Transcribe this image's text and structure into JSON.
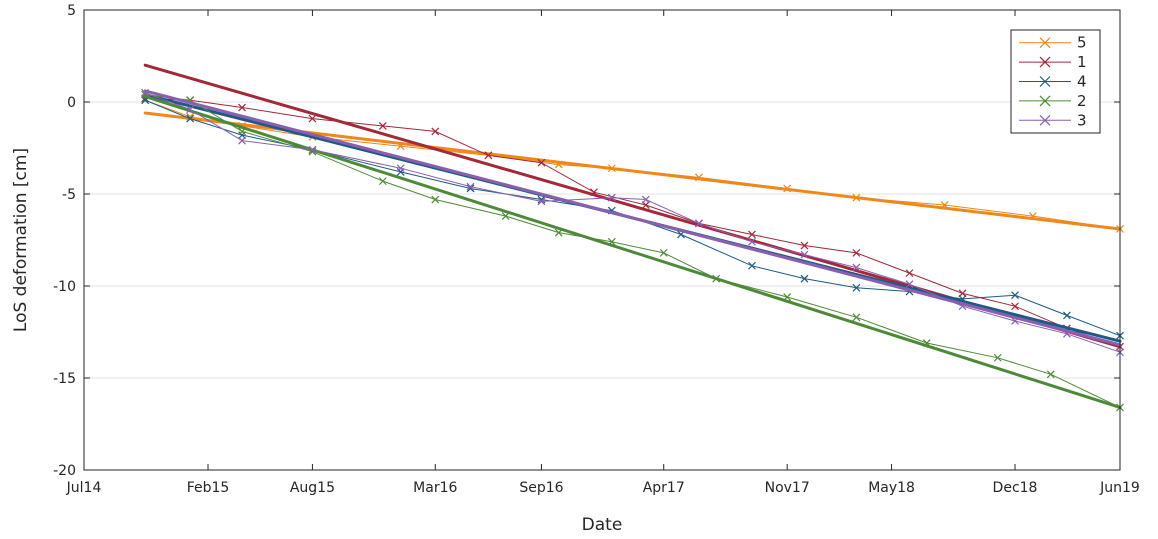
{
  "chart_data": {
    "type": "line",
    "title": "",
    "xlabel": "Date",
    "ylabel": "LoS deformation [cm]",
    "x_axis": "date",
    "xlim": [
      "2014-07-01",
      "2019-06-01"
    ],
    "ylim": [
      -20,
      5
    ],
    "x_ticks": [
      {
        "date": "2014-07-01",
        "label": "Jul14"
      },
      {
        "date": "2015-02-01",
        "label": "Feb15"
      },
      {
        "date": "2015-08-01",
        "label": "Aug15"
      },
      {
        "date": "2016-03-01",
        "label": "Mar16"
      },
      {
        "date": "2016-09-01",
        "label": "Sep16"
      },
      {
        "date": "2017-04-01",
        "label": "Apr17"
      },
      {
        "date": "2017-11-01",
        "label": "Nov17"
      },
      {
        "date": "2018-05-01",
        "label": "May18"
      },
      {
        "date": "2018-12-01",
        "label": "Dec18"
      },
      {
        "date": "2019-06-01",
        "label": "Jun19"
      }
    ],
    "y_ticks": [
      {
        "value": 5,
        "label": "5"
      },
      {
        "value": 0,
        "label": "0"
      },
      {
        "value": -5,
        "label": "-5"
      },
      {
        "value": -10,
        "label": "-10"
      },
      {
        "value": -15,
        "label": "-15"
      },
      {
        "value": -20,
        "label": "-20"
      }
    ],
    "grid": "horizontal",
    "legend_position": "top-right",
    "series": [
      {
        "name": "5",
        "color": "#f0871a",
        "x": [
          "2014-10-15",
          "2015-01-01",
          "2015-04-01",
          "2015-08-01",
          "2016-01-01",
          "2016-06-01",
          "2016-10-01",
          "2017-01-01",
          "2017-06-01",
          "2017-11-01",
          "2018-03-01",
          "2018-08-01",
          "2019-01-01",
          "2019-06-01"
        ],
        "y": [
          0.1,
          -0.8,
          -1.3,
          -1.9,
          -2.4,
          -2.9,
          -3.4,
          -3.6,
          -4.1,
          -4.7,
          -5.2,
          -5.6,
          -6.2,
          -6.9
        ],
        "trend": [
          [
            "2014-10-15",
            -0.6
          ],
          [
            "2019-06-01",
            -6.9
          ]
        ]
      },
      {
        "name": "1",
        "color": "#a2283a",
        "x": [
          "2014-10-15",
          "2015-01-01",
          "2015-04-01",
          "2015-08-01",
          "2015-12-01",
          "2016-03-01",
          "2016-06-01",
          "2016-09-01",
          "2016-12-01",
          "2017-03-01",
          "2017-06-01",
          "2017-09-01",
          "2017-12-01",
          "2018-03-01",
          "2018-06-01",
          "2018-09-01",
          "2018-12-01",
          "2019-03-01",
          "2019-06-01"
        ],
        "y": [
          0.2,
          0.1,
          -0.3,
          -0.9,
          -1.3,
          -1.6,
          -2.9,
          -3.3,
          -4.9,
          -5.6,
          -6.6,
          -7.2,
          -7.8,
          -8.2,
          -9.3,
          -10.4,
          -11.1,
          -12.3,
          -13.3
        ],
        "trend": [
          [
            "2014-10-15",
            2.0
          ],
          [
            "2019-06-01",
            -13.3
          ]
        ]
      },
      {
        "name": "4",
        "color": "#1d5a86",
        "x": [
          "2014-10-15",
          "2015-01-01",
          "2015-04-01",
          "2015-08-01",
          "2016-01-01",
          "2016-05-01",
          "2016-09-01",
          "2017-01-01",
          "2017-05-01",
          "2017-09-01",
          "2017-12-01",
          "2018-03-01",
          "2018-06-01",
          "2018-09-01",
          "2018-12-01",
          "2019-03-01",
          "2019-06-01"
        ],
        "y": [
          0.1,
          -0.9,
          -1.8,
          -2.6,
          -3.8,
          -4.7,
          -5.3,
          -5.9,
          -7.2,
          -8.9,
          -9.6,
          -10.1,
          -10.3,
          -10.7,
          -10.5,
          -11.6,
          -12.7
        ],
        "trend": [
          [
            "2014-10-15",
            0.4
          ],
          [
            "2019-06-01",
            -13.0
          ]
        ]
      },
      {
        "name": "2",
        "color": "#4d8a37",
        "x": [
          "2014-10-15",
          "2015-01-01",
          "2015-04-01",
          "2015-08-01",
          "2015-12-01",
          "2016-03-01",
          "2016-07-01",
          "2016-10-01",
          "2017-01-01",
          "2017-04-01",
          "2017-07-01",
          "2017-11-01",
          "2018-03-01",
          "2018-07-01",
          "2018-11-01",
          "2019-02-01",
          "2019-06-01"
        ],
        "y": [
          0.4,
          0.1,
          -1.6,
          -2.7,
          -4.3,
          -5.3,
          -6.2,
          -7.1,
          -7.6,
          -8.2,
          -9.6,
          -10.6,
          -11.7,
          -13.1,
          -13.9,
          -14.8,
          -16.6
        ],
        "trend": [
          [
            "2014-10-15",
            0.3
          ],
          [
            "2019-06-01",
            -16.6
          ]
        ]
      },
      {
        "name": "3",
        "color": "#8a5fb0",
        "x": [
          "2014-10-15",
          "2015-01-01",
          "2015-04-01",
          "2015-08-01",
          "2016-01-01",
          "2016-05-01",
          "2016-09-01",
          "2017-01-01",
          "2017-03-01",
          "2017-06-01",
          "2017-09-01",
          "2017-12-01",
          "2018-03-01",
          "2018-06-01",
          "2018-09-01",
          "2018-12-01",
          "2019-03-01",
          "2019-06-01"
        ],
        "y": [
          0.5,
          -0.4,
          -2.1,
          -2.6,
          -3.6,
          -4.6,
          -5.4,
          -5.2,
          -5.3,
          -6.6,
          -7.6,
          -8.3,
          -9.0,
          -9.9,
          -11.1,
          -11.9,
          -12.6,
          -13.6
        ],
        "trend": [
          [
            "2014-10-15",
            0.6
          ],
          [
            "2019-06-01",
            -13.2
          ]
        ]
      }
    ]
  }
}
